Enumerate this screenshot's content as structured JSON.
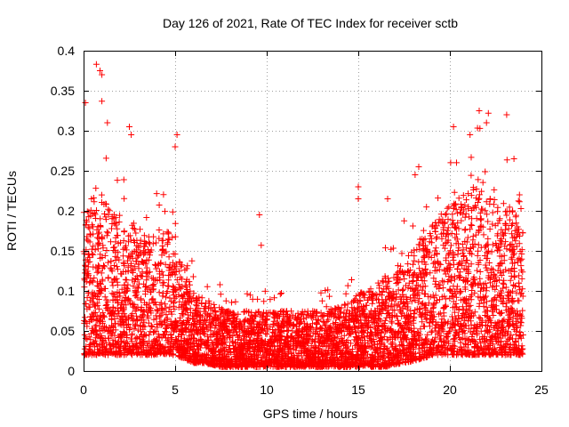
{
  "chart_data": {
    "type": "scatter",
    "title": "Day 126 of 2021, Rate Of TEC Index for receiver sctb",
    "xlabel": "GPS time / hours",
    "ylabel": "ROTI / TECUs",
    "xlim": [
      0,
      25
    ],
    "ylim": [
      0,
      0.4
    ],
    "x_ticks": [
      0,
      5,
      10,
      15,
      20,
      25
    ],
    "y_ticks": [
      0,
      0.05,
      0.1,
      0.15,
      0.2,
      0.25,
      0.3,
      0.35,
      0.4
    ],
    "x_tick_labels": [
      "0",
      "5",
      "10",
      "15",
      "20",
      "25"
    ],
    "y_tick_labels": [
      "0",
      "0.05",
      "0.1",
      "0.15",
      "0.2",
      "0.25",
      "0.3",
      "0.35",
      "0.4"
    ],
    "grid": true,
    "marker": "+",
    "marker_color": "#ff0000",
    "series": [
      {
        "name": "ROTI",
        "x_range": [
          0,
          24
        ],
        "envelope": {
          "hours": [
            0,
            0.5,
            1,
            1.5,
            2,
            2.5,
            3,
            3.5,
            4,
            4.5,
            5,
            5.5,
            6,
            6.5,
            7,
            7.5,
            8,
            9,
            10,
            11,
            12,
            13,
            14,
            15,
            15.5,
            16,
            16.5,
            17,
            17.5,
            18,
            18.5,
            19,
            19.5,
            20,
            20.5,
            21,
            21.5,
            22,
            22.5,
            23,
            23.5,
            24
          ],
          "typical_max": [
            0.2,
            0.22,
            0.22,
            0.2,
            0.19,
            0.19,
            0.18,
            0.17,
            0.17,
            0.18,
            0.17,
            0.12,
            0.1,
            0.09,
            0.085,
            0.08,
            0.075,
            0.075,
            0.075,
            0.075,
            0.075,
            0.075,
            0.08,
            0.1,
            0.1,
            0.11,
            0.12,
            0.12,
            0.14,
            0.15,
            0.17,
            0.18,
            0.2,
            0.21,
            0.22,
            0.23,
            0.23,
            0.22,
            0.21,
            0.21,
            0.2,
            0.18
          ],
          "floor": [
            0.02,
            0.02,
            0.02,
            0.02,
            0.02,
            0.02,
            0.02,
            0.02,
            0.02,
            0.02,
            0.02,
            0.015,
            0.01,
            0.01,
            0.008,
            0.005,
            0.005,
            0.005,
            0.005,
            0.005,
            0.005,
            0.005,
            0.005,
            0.005,
            0.005,
            0.005,
            0.005,
            0.008,
            0.01,
            0.012,
            0.015,
            0.02,
            0.02,
            0.02,
            0.02,
            0.02,
            0.02,
            0.02,
            0.02,
            0.02,
            0.02,
            0.02
          ]
        },
        "notable_points": [
          {
            "x": 0.7,
            "y": 0.383
          },
          {
            "x": 0.9,
            "y": 0.375
          },
          {
            "x": 1.0,
            "y": 0.37
          },
          {
            "x": 0.1,
            "y": 0.335
          },
          {
            "x": 1.0,
            "y": 0.337
          },
          {
            "x": 1.3,
            "y": 0.31
          },
          {
            "x": 2.5,
            "y": 0.305
          },
          {
            "x": 2.6,
            "y": 0.295
          },
          {
            "x": 5.1,
            "y": 0.295
          },
          {
            "x": 5.0,
            "y": 0.28
          },
          {
            "x": 9.6,
            "y": 0.195
          },
          {
            "x": 9.7,
            "y": 0.157
          },
          {
            "x": 15.0,
            "y": 0.23
          },
          {
            "x": 15.0,
            "y": 0.215
          },
          {
            "x": 16.6,
            "y": 0.215
          },
          {
            "x": 18.1,
            "y": 0.245
          },
          {
            "x": 18.3,
            "y": 0.255
          },
          {
            "x": 20.2,
            "y": 0.305
          },
          {
            "x": 21.1,
            "y": 0.295
          },
          {
            "x": 21.6,
            "y": 0.325
          },
          {
            "x": 22.1,
            "y": 0.322
          },
          {
            "x": 22.0,
            "y": 0.31
          },
          {
            "x": 23.1,
            "y": 0.32
          },
          {
            "x": 23.5,
            "y": 0.265
          },
          {
            "x": 23.8,
            "y": 0.22
          },
          {
            "x": 24.0,
            "y": 0.045
          }
        ]
      }
    ]
  }
}
